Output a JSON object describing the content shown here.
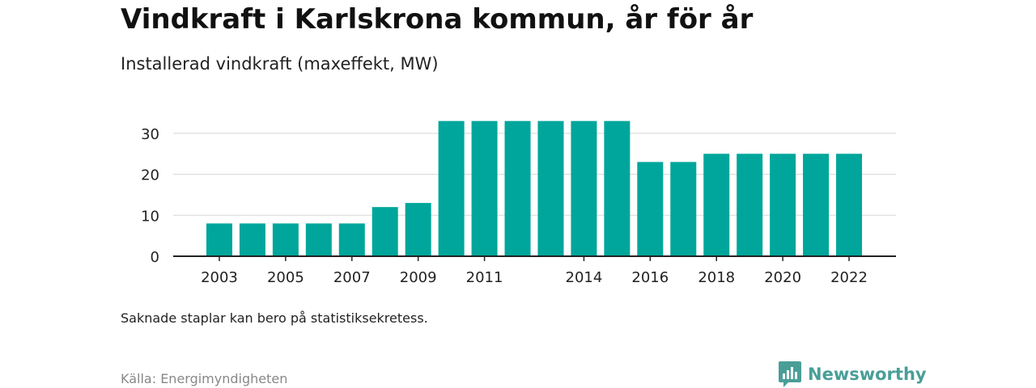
{
  "header": {
    "title": "Vindkraft i Karlskrona kommun, år för år",
    "subtitle": "Installerad vindkraft (maxeffekt, MW)"
  },
  "footer": {
    "note": "Saknade staplar kan bero på statistiksekretess.",
    "source": "Källa: Energimyndigheten",
    "brand": "Newsworthy",
    "brand_icon": "bar-chart-logo-icon"
  },
  "colors": {
    "bar": "#00a69b",
    "grid": "#dddddd",
    "axis": "#222222",
    "brand": "#4a9e98"
  },
  "chart_data": {
    "type": "bar",
    "categories": [
      "2003",
      "2004",
      "2005",
      "2006",
      "2007",
      "2008",
      "2009",
      "2010",
      "2011",
      "2012",
      "2013",
      "2014",
      "2015",
      "2016",
      "2017",
      "2018",
      "2019",
      "2020",
      "2021",
      "2022"
    ],
    "values": [
      8,
      8,
      8,
      8,
      8,
      12,
      13,
      33,
      33,
      33,
      33,
      33,
      33,
      23,
      23,
      25,
      25,
      25,
      25,
      25
    ],
    "x_tick_labels": [
      "2003",
      "2005",
      "2007",
      "2009",
      "2011",
      "2014",
      "2016",
      "2018",
      "2020",
      "2022"
    ],
    "y_ticks": [
      0,
      10,
      20,
      30
    ],
    "ylim": [
      0,
      35
    ],
    "grid": "horizontal",
    "legend": "none",
    "xlabel": "",
    "ylabel": ""
  }
}
